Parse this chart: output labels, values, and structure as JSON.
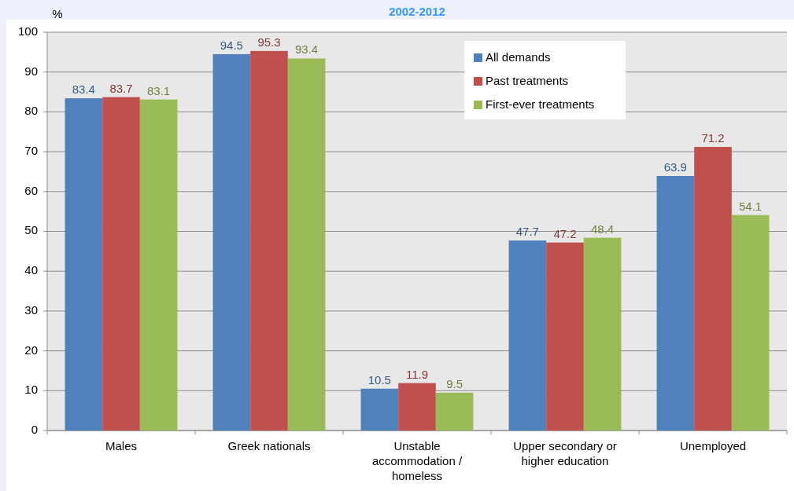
{
  "chart_data": {
    "type": "bar",
    "title": "2002-2012",
    "ylabel": "%",
    "categories": [
      "Males",
      "Greek nationals",
      "Unstable accommodation / homeless",
      "Upper secondary or higher education",
      "Unemployed"
    ],
    "series": [
      {
        "name": "All demands",
        "color": "#4f81bd",
        "values": [
          83.4,
          94.5,
          10.5,
          47.7,
          63.9
        ]
      },
      {
        "name": "Past treatments",
        "color": "#c0504d",
        "values": [
          83.7,
          95.3,
          11.9,
          47.2,
          71.2
        ]
      },
      {
        "name": "First-ever treatments",
        "color": "#9bbb59",
        "values": [
          83.1,
          93.4,
          9.5,
          48.4,
          54.1
        ]
      }
    ],
    "ylim": [
      0,
      100
    ],
    "yticks": [
      0,
      10,
      20,
      30,
      40,
      50,
      60,
      70,
      80,
      90,
      100
    ],
    "grid": "y",
    "legend": "top right",
    "data_labels": true
  }
}
